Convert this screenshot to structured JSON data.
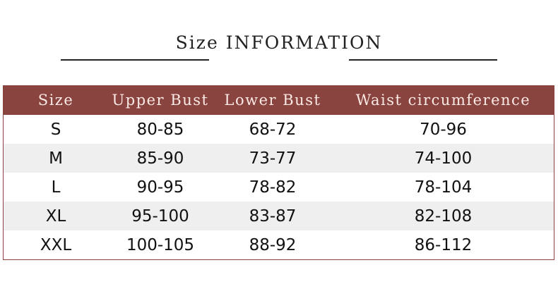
{
  "title": "Size INFORMATION",
  "colors": {
    "header_bg": "#8a4440",
    "header_text": "#fbe9e4",
    "alt_row": "#efefef"
  },
  "table": {
    "headers": [
      "Size",
      "Upper Bust",
      "Lower Bust",
      "Waist circumference"
    ],
    "rows": [
      [
        "S",
        "80-85",
        "68-72",
        "70-96"
      ],
      [
        "M",
        "85-90",
        "73-77",
        "74-100"
      ],
      [
        "L",
        "90-95",
        "78-82",
        "78-104"
      ],
      [
        "XL",
        "95-100",
        "83-87",
        "82-108"
      ],
      [
        "XXL",
        "100-105",
        "88-92",
        "86-112"
      ]
    ]
  }
}
